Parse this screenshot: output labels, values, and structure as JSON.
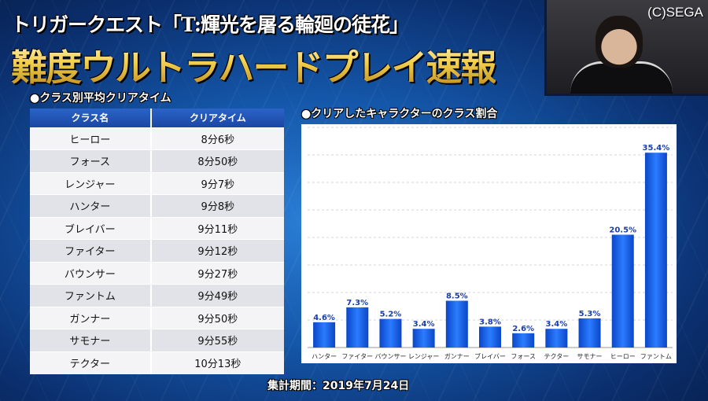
{
  "title_line1": "トリガークエスト「T:輝光を屠る輪廻の徒花」",
  "title_line2": "難度ウルトラハードプレイ速報",
  "copyright": "(C)SEGA",
  "table_section_title": "●クラス別平均クリアタイム",
  "chart_section_title": "●クリアしたキャラクターのクラス割合",
  "table": {
    "headers": [
      "クラス名",
      "クリアタイム"
    ],
    "rows": [
      [
        "ヒーロー",
        "8分6秒"
      ],
      [
        "フォース",
        "8分50秒"
      ],
      [
        "レンジャー",
        "9分7秒"
      ],
      [
        "ハンター",
        "9分8秒"
      ],
      [
        "ブレイバー",
        "9分11秒"
      ],
      [
        "ファイター",
        "9分12秒"
      ],
      [
        "バウンサー",
        "9分27秒"
      ],
      [
        "ファントム",
        "9分49秒"
      ],
      [
        "ガンナー",
        "9分50秒"
      ],
      [
        "サモナー",
        "9分55秒"
      ],
      [
        "テクター",
        "10分13秒"
      ]
    ]
  },
  "footer": "集計期間：2019年7月24日",
  "chart_data": {
    "type": "bar",
    "title": "クリアしたキャラクターのクラス割合",
    "categories": [
      "ハンター",
      "ファイター",
      "バウンサー",
      "レンジャー",
      "ガンナー",
      "ブレイバー",
      "フォース",
      "テクター",
      "サモナー",
      "ヒーロー",
      "ファントム"
    ],
    "values": [
      4.6,
      7.3,
      5.2,
      3.4,
      8.5,
      3.8,
      2.6,
      3.4,
      5.3,
      20.5,
      35.4
    ],
    "value_labels": [
      "4.6%",
      "7.3%",
      "5.2%",
      "3.4%",
      "8.5%",
      "3.8%",
      "2.6%",
      "3.4%",
      "5.3%",
      "20.5%",
      "35.4%"
    ],
    "ylim": [
      0,
      40
    ],
    "grid": true,
    "bar_color": "#1560e8",
    "xlabel": "",
    "ylabel": ""
  }
}
